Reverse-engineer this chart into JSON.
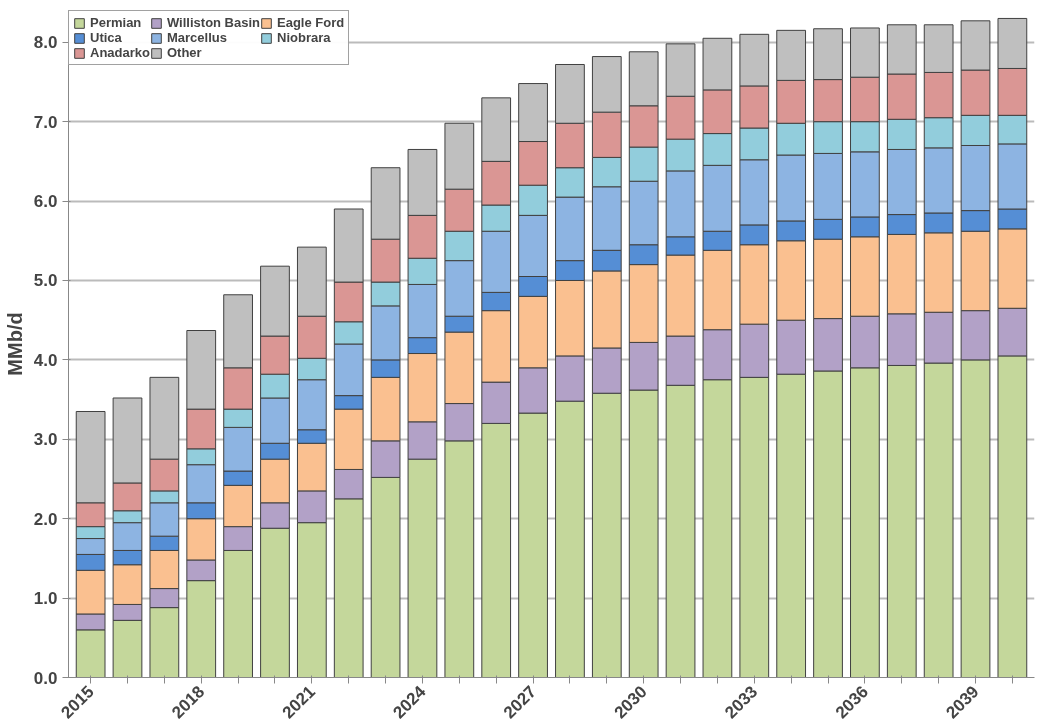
{
  "chart_data": {
    "type": "bar",
    "stacked": true,
    "ylabel": "MMb/d",
    "categories": [
      "2015",
      null,
      null,
      "2018",
      null,
      null,
      "2021",
      null,
      null,
      "2024",
      null,
      null,
      "2027",
      null,
      null,
      "2030",
      null,
      null,
      "2033",
      null,
      null,
      "2036",
      null,
      null,
      "2039",
      null
    ],
    "ylim": [
      0,
      8.4
    ],
    "yticks": [
      {
        "value": 0,
        "label": "0.0"
      },
      {
        "value": 1,
        "label": "1.0"
      },
      {
        "value": 2,
        "label": "2.0"
      },
      {
        "value": 3,
        "label": "3.0"
      },
      {
        "value": 4,
        "label": "4.0"
      },
      {
        "value": 5,
        "label": "5.0"
      },
      {
        "value": 6,
        "label": "6.0"
      },
      {
        "value": 7,
        "label": "7.0"
      },
      {
        "value": 8,
        "label": "8.0"
      }
    ],
    "grid": "y",
    "legend": "top left",
    "series": [
      {
        "name": "Permian",
        "color": "#c4d79b",
        "values": [
          0.6,
          0.72,
          0.88,
          1.22,
          1.6,
          1.88,
          1.95,
          2.25,
          2.52,
          2.75,
          2.98,
          3.2,
          3.33,
          3.48,
          3.58,
          3.62,
          3.68,
          3.75,
          3.78,
          3.82,
          3.86,
          3.9,
          3.93,
          3.96,
          4.0,
          4.05
        ]
      },
      {
        "name": "Williston Basin",
        "color": "#b2a1c7",
        "values": [
          0.2,
          0.2,
          0.24,
          0.26,
          0.3,
          0.32,
          0.4,
          0.37,
          0.46,
          0.47,
          0.47,
          0.52,
          0.57,
          0.57,
          0.57,
          0.6,
          0.62,
          0.63,
          0.67,
          0.68,
          0.66,
          0.65,
          0.65,
          0.64,
          0.62,
          0.6
        ]
      },
      {
        "name": "Eagle Ford",
        "color": "#fac090",
        "values": [
          0.55,
          0.5,
          0.48,
          0.52,
          0.52,
          0.55,
          0.6,
          0.76,
          0.8,
          0.86,
          0.9,
          0.9,
          0.9,
          0.95,
          0.97,
          0.98,
          1.02,
          1.0,
          1.0,
          1.0,
          1.0,
          1.0,
          1.0,
          1.0,
          1.0,
          1.0
        ]
      },
      {
        "name": "Utica",
        "color": "#558ed5",
        "values": [
          0.2,
          0.18,
          0.18,
          0.2,
          0.18,
          0.2,
          0.17,
          0.17,
          0.22,
          0.2,
          0.2,
          0.23,
          0.25,
          0.25,
          0.26,
          0.25,
          0.23,
          0.24,
          0.25,
          0.25,
          0.25,
          0.25,
          0.25,
          0.25,
          0.26,
          0.25
        ]
      },
      {
        "name": "Marcellus",
        "color": "#8db4e2",
        "values": [
          0.2,
          0.35,
          0.42,
          0.48,
          0.55,
          0.57,
          0.63,
          0.65,
          0.68,
          0.67,
          0.7,
          0.77,
          0.77,
          0.8,
          0.8,
          0.8,
          0.83,
          0.83,
          0.82,
          0.83,
          0.83,
          0.82,
          0.82,
          0.82,
          0.82,
          0.82
        ]
      },
      {
        "name": "Niobrara",
        "color": "#92cddc",
        "values": [
          0.15,
          0.15,
          0.15,
          0.2,
          0.23,
          0.3,
          0.27,
          0.28,
          0.3,
          0.33,
          0.37,
          0.33,
          0.38,
          0.37,
          0.37,
          0.43,
          0.4,
          0.4,
          0.4,
          0.4,
          0.4,
          0.38,
          0.38,
          0.38,
          0.38,
          0.36
        ]
      },
      {
        "name": "Anadarko",
        "color": "#da9694",
        "values": [
          0.3,
          0.35,
          0.4,
          0.5,
          0.52,
          0.48,
          0.53,
          0.5,
          0.54,
          0.54,
          0.53,
          0.55,
          0.55,
          0.56,
          0.57,
          0.52,
          0.54,
          0.55,
          0.53,
          0.54,
          0.53,
          0.56,
          0.57,
          0.57,
          0.57,
          0.59
        ]
      },
      {
        "name": "Other",
        "color": "#bfbfbf",
        "values": [
          1.15,
          1.07,
          1.03,
          0.99,
          0.92,
          0.88,
          0.87,
          0.92,
          0.9,
          0.83,
          0.83,
          0.8,
          0.73,
          0.74,
          0.7,
          0.68,
          0.66,
          0.65,
          0.65,
          0.63,
          0.64,
          0.62,
          0.62,
          0.6,
          0.62,
          0.63
        ]
      }
    ]
  }
}
